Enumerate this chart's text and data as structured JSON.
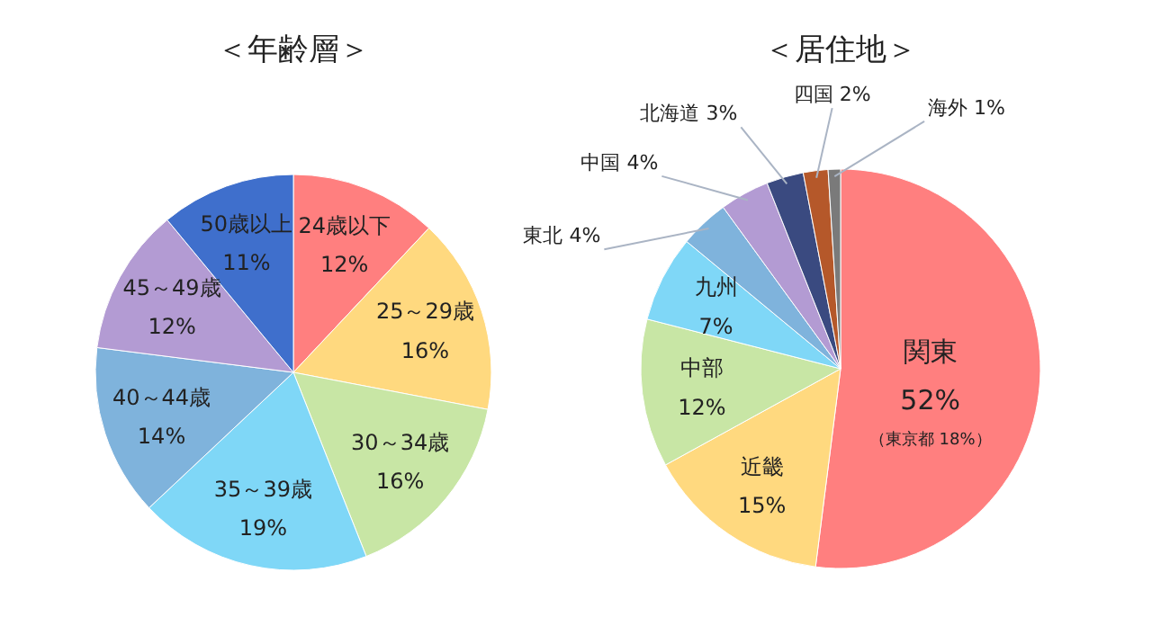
{
  "chart_data": [
    {
      "type": "pie",
      "title": "＜年齢層＞",
      "categories": [
        "24歳以下",
        "25～29歳",
        "30～34歳",
        "35～39歳",
        "40～44歳",
        "45～49歳",
        "50歳以上"
      ],
      "values": [
        12,
        16,
        16,
        19,
        14,
        12,
        11
      ],
      "value_labels": [
        "12%",
        "16%",
        "16%",
        "19%",
        "14%",
        "12%",
        "11%"
      ],
      "colors": [
        "#ff7f7f",
        "#ffd97f",
        "#c8e6a5",
        "#7fd7f7",
        "#7fb3dc",
        "#b39bd3",
        "#3f6fcc"
      ]
    },
    {
      "type": "pie",
      "title": "＜居住地＞",
      "categories": [
        "関東",
        "近畿",
        "中部",
        "九州",
        "東北",
        "中国",
        "北海道",
        "四国",
        "海外"
      ],
      "values": [
        52,
        15,
        12,
        7,
        4,
        4,
        3,
        2,
        1
      ],
      "value_labels": [
        "52%",
        "15%",
        "12%",
        "7%",
        "4%",
        "4%",
        "3%",
        "2%",
        "1%"
      ],
      "colors": [
        "#ff7f7f",
        "#ffd97f",
        "#c8e6a5",
        "#7fd7f7",
        "#7fb3dc",
        "#b39bd3",
        "#3a4a80",
        "#b5582a",
        "#7a7a7a"
      ],
      "annotations": [
        {
          "text": "（東京都 18%）",
          "x": "関東"
        }
      ]
    }
  ]
}
